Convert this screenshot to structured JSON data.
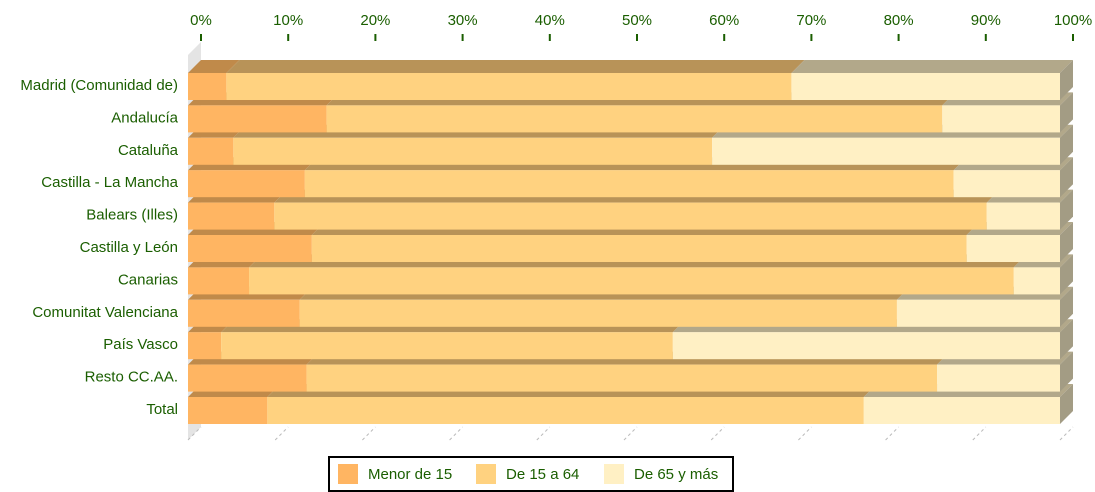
{
  "chart_data": {
    "type": "stacked_barh_3d",
    "categories": [
      "Madrid (Comunidad de)",
      "Andalucía",
      "Cataluña",
      "Castilla - La Mancha",
      "Balears (Illes)",
      "Castilla y León",
      "Canarias",
      "Comunitat Valenciana",
      "País Vasco",
      "Resto CC.AA.",
      "Total"
    ],
    "series": [
      {
        "name": "Menor de 15",
        "color": "#ffb562",
        "top_color": "#c08a4a",
        "values": [
          4.4,
          15.9,
          5.2,
          13.4,
          9.9,
          14.2,
          7.0,
          12.8,
          3.8,
          13.6,
          9.1
        ]
      },
      {
        "name": "De 15 a 64",
        "color": "#ffd280",
        "top_color": "#b89358",
        "values": [
          64.8,
          70.6,
          54.9,
          74.4,
          81.7,
          75.1,
          87.7,
          68.5,
          51.8,
          72.3,
          68.4
        ]
      },
      {
        "name": "De 65 y más",
        "color": "#fff0c4",
        "top_color": "#b2a88a",
        "values": [
          30.8,
          13.5,
          39.9,
          12.2,
          8.4,
          10.7,
          5.3,
          18.7,
          44.4,
          14.1,
          22.5
        ]
      }
    ],
    "xlim": [
      0,
      100
    ],
    "xticks": [
      {
        "value": 0,
        "label": "0%"
      },
      {
        "value": 10,
        "label": "10%"
      },
      {
        "value": 20,
        "label": "20%"
      },
      {
        "value": 30,
        "label": "30%"
      },
      {
        "value": 40,
        "label": "40%"
      },
      {
        "value": 50,
        "label": "50%"
      },
      {
        "value": 60,
        "label": "60%"
      },
      {
        "value": 70,
        "label": "70%"
      },
      {
        "value": 80,
        "label": "80%"
      },
      {
        "value": 90,
        "label": "90%"
      },
      {
        "value": 100,
        "label": "100%"
      }
    ]
  }
}
